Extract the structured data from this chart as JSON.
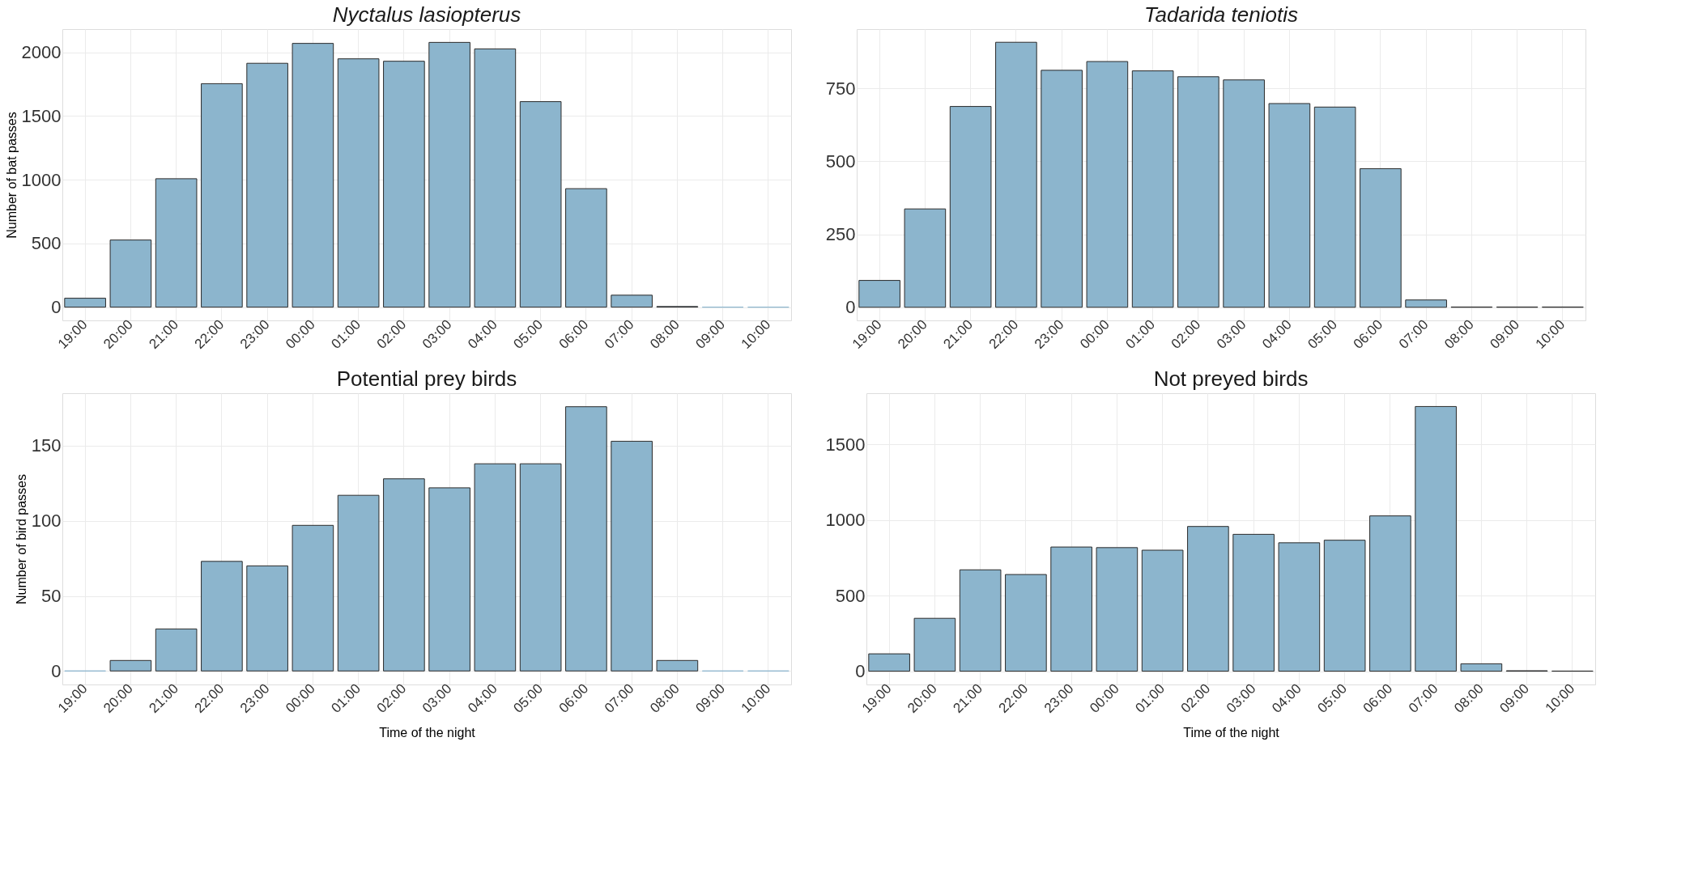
{
  "chart_data": [
    {
      "type": "bar",
      "title": "Nyctalus lasiopterus",
      "ylabel": "Number of bat passes",
      "categories": [
        "19:00",
        "20:00",
        "21:00",
        "22:00",
        "23:00",
        "00:00",
        "01:00",
        "02:00",
        "03:00",
        "04:00",
        "05:00",
        "06:00",
        "07:00",
        "08:00",
        "09:00",
        "10:00"
      ],
      "values": [
        70,
        527,
        1008,
        1754,
        1914,
        2070,
        1949,
        1930,
        2078,
        2027,
        1613,
        930,
        94,
        5,
        0,
        0
      ],
      "color": "#8cb5cd",
      "ylim": [
        -104,
        2182
      ],
      "yticks": [
        0,
        500,
        1000,
        1500,
        2000
      ],
      "grid": true
    },
    {
      "type": "bar",
      "title": "Tadarida teniotis",
      "categories": [
        "19:00",
        "20:00",
        "21:00",
        "22:00",
        "23:00",
        "00:00",
        "01:00",
        "02:00",
        "03:00",
        "04:00",
        "05:00",
        "06:00",
        "07:00",
        "08:00",
        "09:00",
        "10:00"
      ],
      "values": [
        92,
        337,
        688,
        908,
        812,
        842,
        810,
        790,
        779,
        698,
        686,
        475,
        25,
        1,
        1,
        1
      ],
      "color": "#8cb5cd",
      "ylim": [
        -45,
        953
      ],
      "yticks": [
        0,
        250,
        500,
        750
      ],
      "grid": true
    },
    {
      "type": "bar",
      "title": "Potential prey birds",
      "xlabel": "Time of the night",
      "ylabel": "Number of bird passes",
      "categories": [
        "19:00",
        "20:00",
        "21:00",
        "22:00",
        "23:00",
        "00:00",
        "01:00",
        "02:00",
        "03:00",
        "04:00",
        "05:00",
        "06:00",
        "07:00",
        "08:00",
        "09:00",
        "10:00"
      ],
      "values": [
        0,
        7,
        28,
        73,
        70,
        97,
        117,
        128,
        122,
        138,
        138,
        176,
        153,
        7,
        0,
        0
      ],
      "color": "#8cb5cd",
      "ylim": [
        -9,
        185
      ],
      "yticks": [
        0,
        50,
        100,
        150
      ],
      "grid": true
    },
    {
      "type": "bar",
      "title": "Not preyed birds",
      "xlabel": "Time of the night",
      "categories": [
        "19:00",
        "20:00",
        "21:00",
        "22:00",
        "23:00",
        "00:00",
        "01:00",
        "02:00",
        "03:00",
        "04:00",
        "05:00",
        "06:00",
        "07:00",
        "08:00",
        "09:00",
        "10:00"
      ],
      "values": [
        115,
        350,
        671,
        640,
        822,
        818,
        801,
        958,
        906,
        850,
        867,
        1028,
        1752,
        49,
        3,
        1
      ],
      "color": "#8cb5cd",
      "ylim": [
        -88,
        1840
      ],
      "yticks": [
        0,
        500,
        1000,
        1500
      ],
      "grid": true
    }
  ]
}
